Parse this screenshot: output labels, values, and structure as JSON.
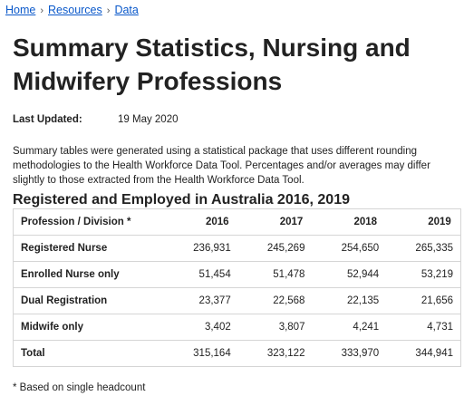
{
  "breadcrumb": {
    "items": [
      "Home",
      "Resources",
      "Data"
    ],
    "separator": "›"
  },
  "page": {
    "title": "Summary Statistics, Nursing and Midwifery Professions",
    "last_updated_label": "Last Updated:",
    "last_updated_value": "19 May 2020",
    "intro": "Summary tables were generated using a statistical package that uses different rounding methodologies to the Health Workforce Data Tool. Percentages and/or averages may differ slightly to those extracted from the Health Workforce Data Tool."
  },
  "table": {
    "title": "Registered and Employed in Australia 2016, 2019",
    "headers": [
      "Profession / Division *",
      "2016",
      "2017",
      "2018",
      "2019"
    ],
    "rows": [
      [
        "Registered Nurse",
        "236,931",
        "245,269",
        "254,650",
        "265,335"
      ],
      [
        "Enrolled Nurse only",
        "51,454",
        "51,478",
        "52,944",
        "53,219"
      ],
      [
        "Dual Registration",
        "23,377",
        "22,568",
        "22,135",
        "21,656"
      ],
      [
        "Midwife only",
        "3,402",
        "3,807",
        "4,241",
        "4,731"
      ],
      [
        "Total",
        "315,164",
        "323,122",
        "333,970",
        "344,941"
      ]
    ]
  },
  "footnote": "* Based on single headcount",
  "colors": {
    "link": "#0a58ca",
    "text": "#222222",
    "border": "#d5d5d5"
  }
}
